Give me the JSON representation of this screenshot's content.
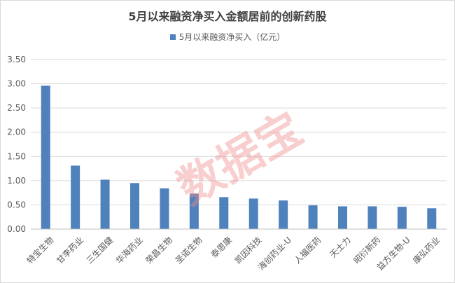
{
  "chart_data": {
    "type": "bar",
    "title": "5月以来融资净买入金额居前的创新药股",
    "legend_position": "top",
    "series": [
      {
        "name": "5月以来融资净买入（亿元）",
        "color": "#4f81bd",
        "values": [
          2.96,
          1.31,
          1.02,
          0.95,
          0.84,
          0.73,
          0.66,
          0.63,
          0.59,
          0.49,
          0.47,
          0.47,
          0.46,
          0.43
        ]
      }
    ],
    "categories": [
      "特宝生物",
      "甘李药业",
      "三生国健",
      "华海药业",
      "荣昌生物",
      "圣诺生物",
      "泰恩康",
      "凯因科技",
      "海创药业-U",
      "人福医药",
      "天士力",
      "昭衍新药",
      "益方生物-U",
      "康弘药业"
    ],
    "ylim": [
      0,
      3.5
    ],
    "yticks": [
      "0.00",
      "0.50",
      "1.00",
      "1.50",
      "2.00",
      "2.50",
      "3.00",
      "3.50"
    ],
    "grid": true
  },
  "watermark": {
    "text": "数据宝",
    "color": "#f08c8c"
  }
}
